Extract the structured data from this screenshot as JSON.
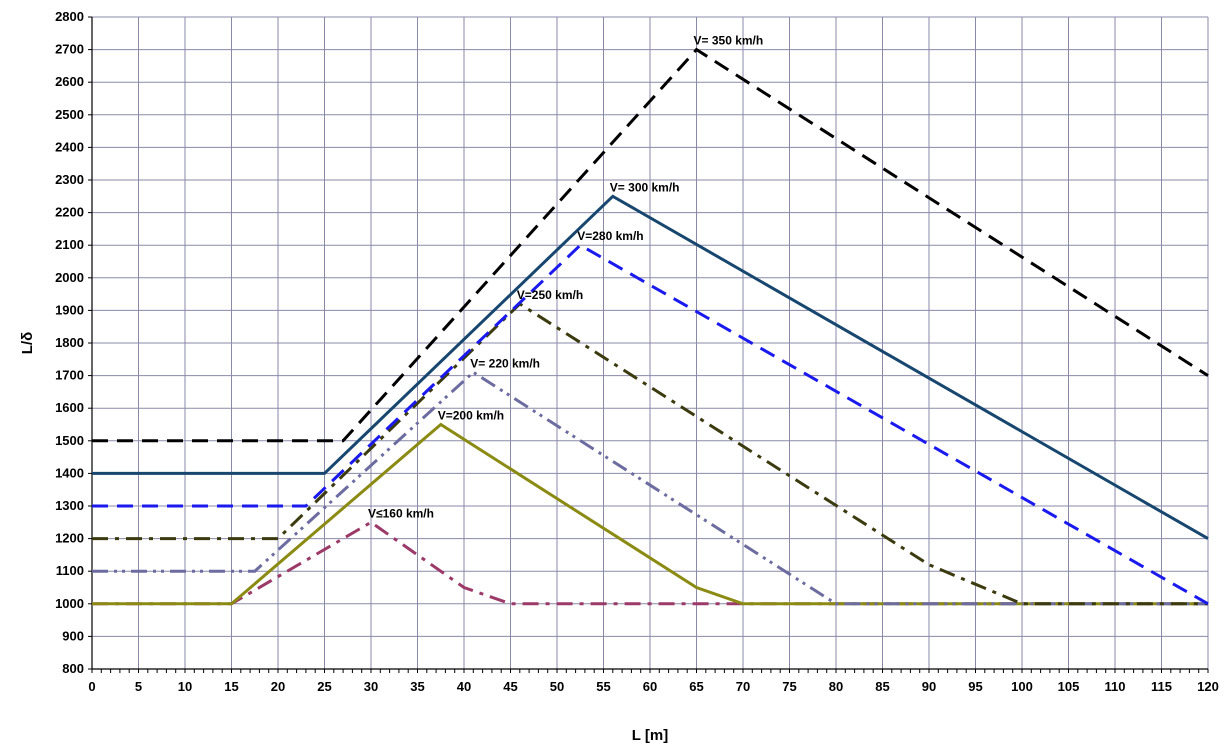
{
  "chart_data": {
    "type": "line",
    "title": "",
    "xlabel": "L  [m]",
    "ylabel": "L/δ",
    "xlim": [
      0,
      120
    ],
    "ylim": [
      800,
      2800
    ],
    "x_major_step": 5,
    "x_minor_step": 1,
    "y_step": 100,
    "grid": true,
    "legend": "none",
    "series": [
      {
        "name": "V≤160 km/h",
        "color": "#9b3a68",
        "dash": "dashdot",
        "points": [
          [
            0,
            1000
          ],
          [
            15,
            1000
          ],
          [
            30,
            1250
          ],
          [
            40,
            1050
          ],
          [
            45,
            1000
          ],
          [
            120,
            1000
          ]
        ],
        "label_at": [
          30,
          1250
        ]
      },
      {
        "name": "V=200 km/h",
        "color": "#8b8b14",
        "dash": "solid",
        "points": [
          [
            0,
            1000
          ],
          [
            15,
            1000
          ],
          [
            37.5,
            1550
          ],
          [
            65,
            1050
          ],
          [
            70,
            1000
          ],
          [
            120,
            1000
          ]
        ],
        "label_at": [
          37.5,
          1550
        ]
      },
      {
        "name": "V= 220 km/h",
        "color": "#6c6ca0",
        "dash": "dashdotdot",
        "points": [
          [
            0,
            1100
          ],
          [
            17.5,
            1100
          ],
          [
            41,
            1710
          ],
          [
            80,
            1000
          ],
          [
            120,
            1000
          ]
        ],
        "label_at": [
          41,
          1710
        ]
      },
      {
        "name": "V=250 km/h",
        "color": "#3b3b0f",
        "dash": "dashdot",
        "points": [
          [
            0,
            1200
          ],
          [
            20,
            1200
          ],
          [
            46,
            1920
          ],
          [
            90,
            1120
          ],
          [
            100,
            1000
          ],
          [
            120,
            1000
          ]
        ],
        "label_at": [
          46,
          1920
        ]
      },
      {
        "name": "V=280 km/h",
        "color": "#1a1aee",
        "dash": "dashed",
        "points": [
          [
            0,
            1300
          ],
          [
            23,
            1300
          ],
          [
            52.5,
            2100
          ],
          [
            120,
            1000
          ]
        ],
        "label_at": [
          52.5,
          2100
        ]
      },
      {
        "name": "V= 300 km/h",
        "color": "#17466e",
        "dash": "solid",
        "points": [
          [
            0,
            1400
          ],
          [
            25,
            1400
          ],
          [
            56,
            2250
          ],
          [
            120,
            1200
          ]
        ],
        "label_at": [
          56,
          2250
        ]
      },
      {
        "name": "V= 350 km/h",
        "color": "#000000",
        "dash": "dashed",
        "points": [
          [
            0,
            1500
          ],
          [
            27,
            1500
          ],
          [
            65,
            2700
          ],
          [
            120,
            1700
          ]
        ],
        "label_at": [
          65,
          2700
        ]
      }
    ]
  }
}
